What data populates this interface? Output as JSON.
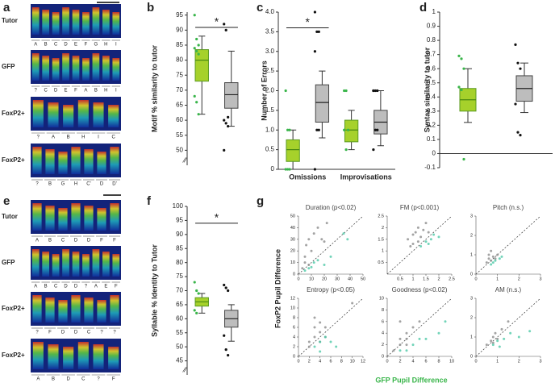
{
  "panel_labels": [
    "a",
    "b",
    "c",
    "d",
    "e",
    "f",
    "g"
  ],
  "spectrograms": {
    "a": [
      {
        "label": "Tutor",
        "syllables": [
          "A",
          "B",
          "C",
          "D",
          "E",
          "F",
          "G",
          "H",
          "I"
        ]
      },
      {
        "label": "GFP",
        "syllables": [
          "?",
          "C",
          "D",
          "E",
          "F",
          "A",
          "B",
          "H",
          "I"
        ]
      },
      {
        "label": "FoxP2+",
        "syllables": [
          "?",
          "A",
          "B",
          "H",
          "I",
          "C"
        ]
      },
      {
        "label": "FoxP2+",
        "syllables": [
          "?",
          "B",
          "G",
          "H",
          "C'",
          "D",
          "D'"
        ]
      }
    ],
    "e": [
      {
        "label": "Tutor",
        "syllables": [
          "A",
          "B",
          "C",
          "D",
          "D",
          "F",
          "F"
        ]
      },
      {
        "label": "GFP",
        "syllables": [
          "A",
          "B",
          "C",
          "D",
          "D",
          "?",
          "A",
          "E",
          "F"
        ]
      },
      {
        "label": "FoxP2+",
        "syllables": [
          "?",
          "F",
          "D",
          "D",
          "C",
          "?",
          "?"
        ]
      },
      {
        "label": "FoxP2+",
        "syllables": [
          "A",
          "B",
          "D",
          "C",
          "?",
          "F"
        ]
      }
    ]
  },
  "g_axis_labels": {
    "x": "GFP Pupil Difference",
    "y": "FoxP2 Pupil Difference"
  },
  "chart_data": [
    {
      "type": "box",
      "panel": 1,
      "y_label": "Motif % similarity to tutor",
      "ylim": [
        45,
        96
      ],
      "yticks": [
        50,
        55,
        60,
        65,
        70,
        75,
        80,
        85,
        90,
        95
      ],
      "ybreak": true,
      "significance": "*",
      "series": [
        {
          "color": "#a6d12b",
          "point_color": "#39b54a",
          "boxes": [
            {
              "whisker_low": 62,
              "q1": 73,
              "median": 80,
              "q3": 83.5,
              "whisker_high": 88,
              "points": [
                95,
                87,
                85,
                84,
                83,
                82,
                68,
                66,
                62
              ]
            }
          ]
        },
        {
          "color": "#bdbdbd",
          "point_color": "#111111",
          "boxes": [
            {
              "whisker_low": 58,
              "q1": 64,
              "median": 68.5,
              "q3": 72.5,
              "whisker_high": 83,
              "points": [
                92,
                90,
                61,
                60,
                59,
                58,
                50
              ]
            }
          ]
        }
      ]
    },
    {
      "type": "box",
      "panel": 2,
      "y_label": "Number of Errors",
      "ylim": [
        0,
        4
      ],
      "yticks": [
        0,
        0.5,
        {
          "value": 1,
          "label": "1.0"
        },
        1.5,
        {
          "value": 2,
          "label": "2.0"
        },
        2.5,
        {
          "value": 3,
          "label": "3.0"
        },
        3.5,
        {
          "value": 4,
          "label": "4.0"
        }
      ],
      "categories": [
        "Omissions",
        "Improvisations"
      ],
      "significance": "*",
      "series": [
        {
          "color": "#a6d12b",
          "point_color": "#39b54a",
          "boxes": [
            {
              "whisker_low": 0,
              "q1": 0.2,
              "median": 0.5,
              "q3": 0.75,
              "whisker_high": 1,
              "points": [
                2,
                1,
                1,
                0,
                0,
                0
              ]
            },
            {
              "whisker_low": 0.5,
              "q1": 0.7,
              "median": 1,
              "q3": 1.25,
              "whisker_high": 1.5,
              "points": [
                2,
                2,
                1,
                1,
                0.5
              ]
            }
          ]
        },
        {
          "color": "#bdbdbd",
          "point_color": "#111111",
          "boxes": [
            {
              "whisker_low": 0.8,
              "q1": 1.2,
              "median": 1.7,
              "q3": 2.15,
              "whisker_high": 2.5,
              "points": [
                4,
                3.5,
                3.5,
                3,
                1,
                1,
                0
              ]
            },
            {
              "whisker_low": 0.6,
              "q1": 0.9,
              "median": 1.2,
              "q3": 1.5,
              "whisker_high": 2,
              "points": [
                2,
                2,
                2,
                2,
                1,
                1,
                0.5
              ]
            }
          ]
        }
      ]
    },
    {
      "type": "box",
      "panel": 3,
      "y_label": "Syntax similarity to tutor",
      "ylim": [
        -0.1,
        1
      ],
      "yticks": [
        -0.1,
        0,
        0.1,
        0.2,
        0.3,
        0.4,
        0.5,
        0.6,
        0.7,
        0.8,
        0.9,
        1
      ],
      "zero_line": true,
      "series": [
        {
          "color": "#a6d12b",
          "point_color": "#39b54a",
          "boxes": [
            {
              "whisker_low": 0.22,
              "q1": 0.3,
              "median": 0.38,
              "q3": 0.46,
              "whisker_high": 0.6,
              "points": [
                0.69,
                0.67,
                0.6,
                0.47,
                0.45,
                -0.04
              ]
            }
          ]
        },
        {
          "color": "#bdbdbd",
          "point_color": "#111111",
          "boxes": [
            {
              "whisker_low": 0.29,
              "q1": 0.37,
              "median": 0.46,
              "q3": 0.55,
              "whisker_high": 0.64,
              "points": [
                0.77,
                0.64,
                0.6,
                0.35,
                0.15,
                0.13
              ]
            }
          ]
        }
      ]
    },
    {
      "type": "box",
      "panel": 5,
      "y_label": "Syllable % Identity to Tutor",
      "ylim": [
        40,
        100
      ],
      "yticks": [
        45,
        50,
        55,
        60,
        65,
        70,
        75,
        80,
        85,
        90,
        95,
        100
      ],
      "ybreak": true,
      "significance": "*",
      "series": [
        {
          "color": "#a6d12b",
          "point_color": "#39b54a",
          "boxes": [
            {
              "whisker_low": 62,
              "q1": 64.5,
              "median": 66,
              "q3": 67.5,
              "whisker_high": 69,
              "points": [
                73,
                70,
                69,
                63,
                62
              ]
            }
          ]
        },
        {
          "color": "#bdbdbd",
          "point_color": "#111111",
          "boxes": [
            {
              "whisker_low": 52,
              "q1": 57,
              "median": 60,
              "q3": 63,
              "whisker_high": 65,
              "points": [
                72,
                71,
                70,
                54,
                49,
                47
              ]
            }
          ]
        }
      ]
    },
    {
      "type": "scatter",
      "title": "Duration (p<0.02)",
      "xlim": [
        0,
        50
      ],
      "ylim": [
        0,
        50
      ],
      "xticks": [
        0,
        10,
        20,
        30,
        40,
        50
      ],
      "yticks": [
        0,
        10,
        20,
        30,
        40,
        50
      ],
      "series": [
        {
          "color": "#8c8c8c",
          "x": [
            3,
            5,
            6,
            8,
            10,
            12,
            15,
            18,
            5,
            8,
            20,
            22
          ],
          "y": [
            5,
            15,
            25,
            30,
            20,
            35,
            40,
            30,
            10,
            8,
            28,
            44
          ]
        },
        {
          "color": "#4fc9a8",
          "x": [
            5,
            8,
            10,
            12,
            15,
            20,
            25,
            35,
            38
          ],
          "y": [
            3,
            5,
            6,
            10,
            12,
            8,
            15,
            35,
            30
          ]
        }
      ]
    },
    {
      "type": "scatter",
      "title": "FM (p<0.001)",
      "xlim": [
        0,
        2.5
      ],
      "ylim": [
        0,
        2.5
      ],
      "xticks": [
        0.5,
        1,
        1.5,
        2,
        2.5
      ],
      "yticks": [
        0.5,
        1,
        1.5,
        2,
        2.5
      ],
      "series": [
        {
          "color": "#8c8c8c",
          "x": [
            0.8,
            1,
            1.1,
            1.2,
            1.3,
            1.4,
            1.5,
            1.6,
            1.2,
            1.0,
            0.9
          ],
          "y": [
            1.5,
            1.7,
            1.8,
            2.0,
            1.6,
            1.9,
            2.2,
            1.8,
            1.4,
            1.3,
            1.2
          ]
        },
        {
          "color": "#4fc9a8",
          "x": [
            1.3,
            1.5,
            1.7,
            1.8,
            2.0,
            1.6
          ],
          "y": [
            1.2,
            1.4,
            1.5,
            1.7,
            1.6,
            1.3
          ]
        }
      ]
    },
    {
      "type": "scatter",
      "title": "Pitch (n.s.)",
      "xlim": [
        0,
        3
      ],
      "ylim": [
        0,
        3
      ],
      "xticks": [
        0,
        1,
        2,
        3
      ],
      "yticks": [
        0,
        1,
        2,
        3
      ],
      "series": [
        {
          "color": "#8c8c8c",
          "x": [
            0.5,
            0.6,
            0.7,
            0.8,
            0.6,
            0.9,
            0.7,
            1.0
          ],
          "y": [
            0.6,
            0.8,
            0.7,
            0.9,
            1.0,
            0.8,
            1.2,
            1.0
          ]
        },
        {
          "color": "#4fc9a8",
          "x": [
            0.7,
            0.9,
            1.1,
            1.2,
            0.8
          ],
          "y": [
            0.5,
            0.7,
            0.8,
            0.9,
            0.6
          ]
        }
      ]
    },
    {
      "type": "scatter",
      "title": "Entropy (p<0.05)",
      "xlim": [
        0,
        12
      ],
      "ylim": [
        0,
        12
      ],
      "xticks": [
        0,
        2,
        4,
        6,
        8,
        10,
        12
      ],
      "yticks": [
        0,
        2,
        4,
        6,
        8,
        10,
        12
      ],
      "series": [
        {
          "color": "#8c8c8c",
          "x": [
            2,
            3,
            3,
            4,
            4,
            5,
            3,
            2,
            4,
            5,
            10
          ],
          "y": [
            3,
            4,
            6,
            5,
            7,
            6,
            8,
            2,
            3,
            4,
            11
          ]
        },
        {
          "color": "#4fc9a8",
          "x": [
            3,
            4,
            5,
            6,
            7,
            4
          ],
          "y": [
            2,
            3,
            4,
            3,
            2,
            1
          ]
        }
      ]
    },
    {
      "type": "scatter",
      "title": "Goodness (p<0.02)",
      "xlim": [
        0,
        10
      ],
      "ylim": [
        0,
        10
      ],
      "xticks": [
        0,
        2,
        4,
        6,
        8,
        10
      ],
      "yticks": [
        0,
        2,
        4,
        6,
        8,
        10
      ],
      "series": [
        {
          "color": "#8c8c8c",
          "x": [
            1,
            2,
            2,
            3,
            3,
            4,
            2,
            5,
            3
          ],
          "y": [
            1,
            2,
            3,
            3,
            4,
            5,
            6,
            6,
            2
          ]
        },
        {
          "color": "#4fc9a8",
          "x": [
            2,
            3,
            4,
            5,
            6,
            8,
            9
          ],
          "y": [
            1,
            1,
            2,
            3,
            3,
            4,
            6
          ]
        }
      ]
    },
    {
      "type": "scatter",
      "title": "AM (n.s.)",
      "xlim": [
        0,
        3
      ],
      "ylim": [
        0,
        3
      ],
      "xticks": [
        0,
        1,
        2,
        3
      ],
      "yticks": [
        0,
        1,
        2,
        3
      ],
      "series": [
        {
          "color": "#8c8c8c",
          "x": [
            0.5,
            0.7,
            0.8,
            0.9,
            1.0,
            1.2,
            0.8,
            1.5
          ],
          "y": [
            0.6,
            0.8,
            1.0,
            1.2,
            0.9,
            1.4,
            0.7,
            1.8
          ]
        },
        {
          "color": "#4fc9a8",
          "x": [
            0.8,
            1.0,
            1.3,
            1.6,
            2.0,
            2.5,
            1.1
          ],
          "y": [
            0.6,
            0.8,
            0.9,
            1.2,
            1.0,
            1.3,
            0.5
          ]
        }
      ]
    }
  ]
}
